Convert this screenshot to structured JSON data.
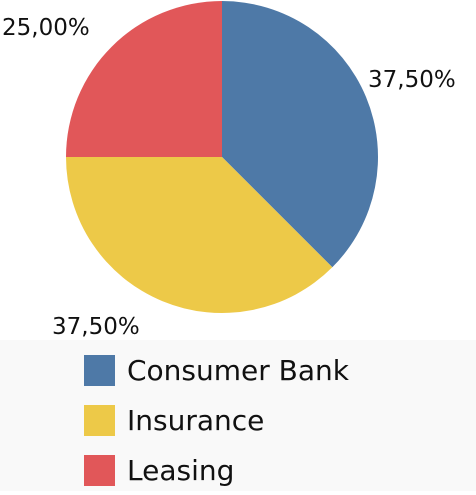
{
  "chart_data": {
    "type": "pie",
    "categories": [
      "Consumer Bank",
      "Insurance",
      "Leasing"
    ],
    "values": [
      37.5,
      37.5,
      25.0
    ],
    "data_labels": [
      "37,50%",
      "37,50%",
      "25,00%"
    ],
    "colors": [
      "#4e79a7",
      "#edc948",
      "#e15759"
    ],
    "start_angle": "12 o'clock, clockwise",
    "legend_placement": "bottom"
  }
}
